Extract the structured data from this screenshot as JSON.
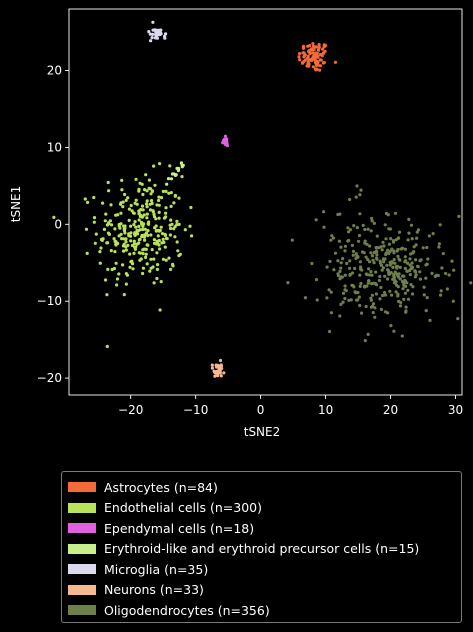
{
  "chart_data": {
    "type": "scatter",
    "xlabel": "tSNE2",
    "ylabel": "tSNE1",
    "xlim": [
      -29.5,
      31
    ],
    "ylim": [
      -22.2,
      28
    ],
    "xticks": [
      -20,
      -10,
      0,
      10,
      20,
      30
    ],
    "yticks": [
      -20,
      -10,
      0,
      10,
      20
    ],
    "background": "#000000",
    "legend_position": "below",
    "series": [
      {
        "name": "Astrocytes (n=84)",
        "color": "#f26b38",
        "n": 84,
        "center": [
          8.2,
          21.8
        ],
        "spread": [
          1.2,
          1.0
        ],
        "shape": "blob"
      },
      {
        "name": "Endothelial cells (n=300)",
        "color": "#b8e25a",
        "n": 300,
        "center": [
          -18.5,
          -0.8
        ],
        "spread": [
          3.3,
          3.6
        ],
        "shape": "blob"
      },
      {
        "name": "Ependymal cells (n=18)",
        "color": "#e060e0",
        "n": 18,
        "center": [
          -5.4,
          10.7
        ],
        "spread": [
          0.25,
          0.3
        ],
        "shape": "blob"
      },
      {
        "name": "Erythroid-like and erythroid precursor cells (n=15)",
        "color": "#c8f08a",
        "n": 15,
        "start": [
          -14.5,
          5.3
        ],
        "end": [
          -11.9,
          7.9
        ],
        "shape": "line"
      },
      {
        "name": "Microglia (n=35)",
        "color": "#dcd8ee",
        "n": 35,
        "center": [
          -16.0,
          24.7
        ],
        "spread": [
          0.6,
          0.45
        ],
        "shape": "blob"
      },
      {
        "name": "Neurons (n=33)",
        "color": "#f6b890",
        "n": 33,
        "center": [
          -6.6,
          -19.0
        ],
        "spread": [
          0.5,
          0.6
        ],
        "shape": "blob"
      },
      {
        "name": "Oligodendrocytes (n=356)",
        "color": "#6f7f4a",
        "n": 356,
        "center": [
          18.5,
          -5.5
        ],
        "spread": [
          4.8,
          3.3
        ],
        "shape": "blob"
      }
    ]
  }
}
